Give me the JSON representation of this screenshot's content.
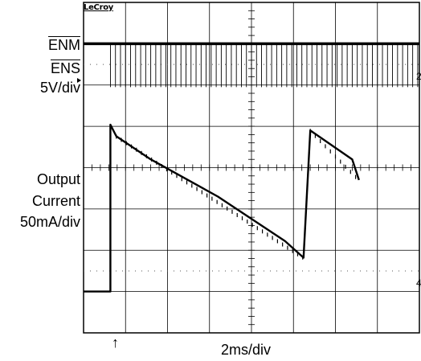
{
  "scope": {
    "brand": "LeCroy",
    "timebase": "2ms/div",
    "trigger_marker": "↑"
  },
  "labels": {
    "ch1_top": "ENM",
    "ch1_bottom": "ENS",
    "ch1_scale": "5V/div",
    "ch2_line1": "Output",
    "ch2_line2": "Current",
    "ch2_scale": "50mA/div"
  },
  "chart_data": {
    "type": "line",
    "x_unit": "ms",
    "xlim": [
      0,
      20
    ],
    "grid": true,
    "series": [
      {
        "name": "ENM",
        "values_note": "constant high",
        "x": [
          0,
          20
        ],
        "y": [
          1,
          1
        ]
      },
      {
        "name": "ENS",
        "pulse_period_ms": 0.3,
        "active_from_ms": 1.6
      },
      {
        "name": "Output Current",
        "unit": "mA",
        "x": [
          0,
          1.6,
          1.6,
          1.95,
          4,
          8,
          12,
          13.1,
          13.1,
          13.5,
          16,
          16.4
        ],
        "y": [
          0,
          0,
          202,
          188,
          160,
          115,
          61,
          41,
          41,
          195,
          160,
          135
        ]
      }
    ]
  }
}
